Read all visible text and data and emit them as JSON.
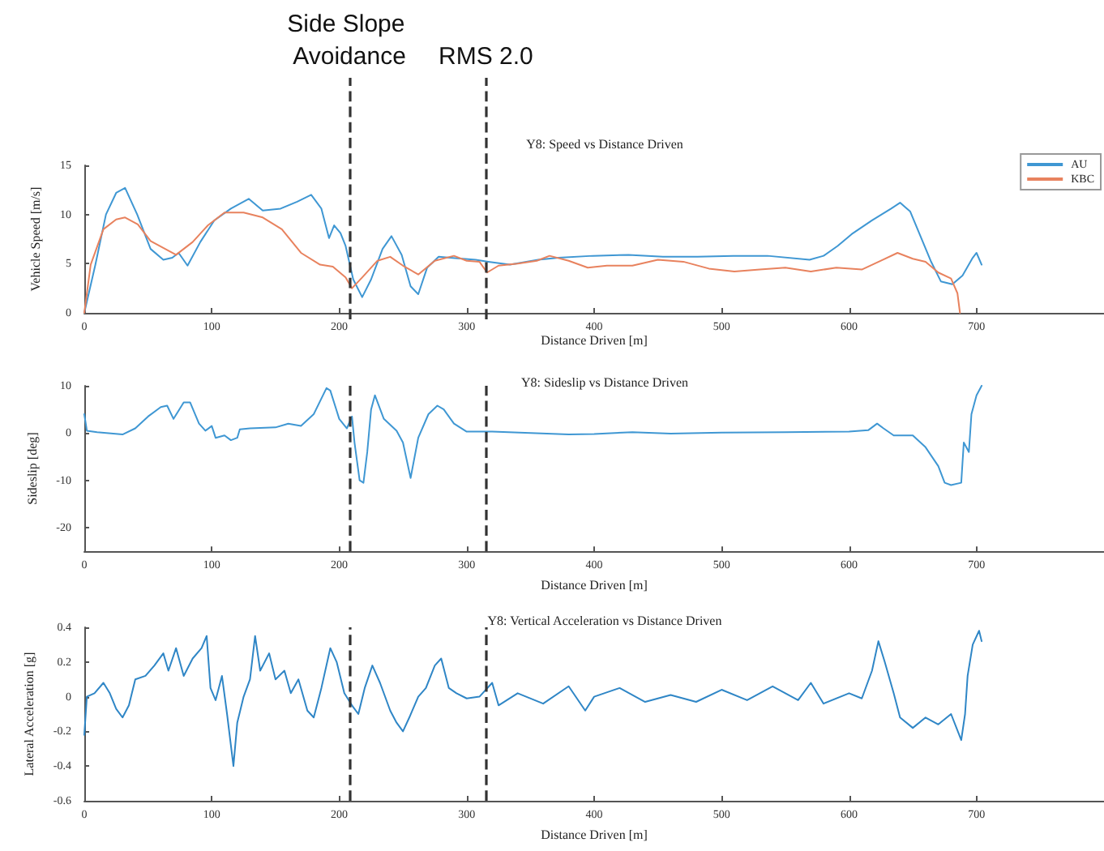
{
  "chart_data": [
    {
      "type": "line",
      "title": "Y8: Speed vs Distance Driven",
      "xlabel": "Distance Driven [m]",
      "ylabel": "Vehicle Speed [m/s]",
      "xlim": [
        0,
        800
      ],
      "xticks": [
        0,
        100,
        200,
        300,
        400,
        500,
        600,
        700
      ],
      "ylim": [
        0,
        15
      ],
      "yticks": [
        0,
        5,
        10,
        15
      ],
      "legend": "top right",
      "grid": false,
      "marker": "none",
      "line_style": "solid",
      "ref_lines": [
        {
          "axis": "x",
          "value": 208,
          "label": "Side Slope Avoidance",
          "color": "#333333",
          "line_style": "dashed"
        },
        {
          "axis": "x",
          "value": 315,
          "label": "RMS 2.0",
          "color": "#333333",
          "line_style": "dashed"
        }
      ],
      "series": [
        {
          "name": "AU",
          "color": "#3f97d3",
          "x": [
            0,
            8.7,
            17,
            25,
            32,
            41.5,
            52,
            62,
            69,
            74,
            81,
            91,
            102,
            115,
            129,
            140,
            154,
            167,
            178,
            186,
            192,
            196,
            201,
            205,
            211,
            218,
            225,
            234,
            241,
            249,
            256,
            262,
            269,
            278,
            287,
            307,
            317,
            334,
            356,
            372,
            399,
            427,
            454,
            481,
            509,
            536,
            569,
            580,
            591,
            602,
            618,
            633,
            640,
            648,
            656,
            664,
            672,
            681,
            689,
            697,
            700,
            704
          ],
          "values": [
            0,
            4.9,
            10,
            12.2,
            12.7,
            10,
            6.5,
            5.4,
            5.6,
            6.1,
            4.8,
            7.2,
            9.4,
            10.6,
            11.6,
            10.4,
            10.6,
            11.3,
            12,
            10.6,
            7.6,
            8.9,
            8.1,
            6.8,
            3.4,
            1.6,
            3.4,
            6.5,
            7.8,
            5.9,
            2.7,
            1.9,
            4.6,
            5.7,
            5.6,
            5.4,
            5.2,
            4.9,
            5.4,
            5.6,
            5.8,
            5.9,
            5.7,
            5.7,
            5.8,
            5.8,
            5.4,
            5.8,
            6.8,
            8,
            9.4,
            10.6,
            11.2,
            10.3,
            7.8,
            5.3,
            3.2,
            2.9,
            3.8,
            5.6,
            6.1,
            4.9
          ]
        },
        {
          "name": "KBC",
          "color": "#e8825e",
          "x": [
            0,
            5,
            15,
            25,
            32,
            42,
            52,
            62,
            72,
            85,
            97,
            110,
            125,
            140,
            155,
            170,
            185,
            195,
            205,
            210,
            218,
            230,
            240,
            250,
            262,
            275,
            290,
            300,
            310,
            316,
            325,
            340,
            355,
            365,
            380,
            395,
            410,
            430,
            450,
            470,
            490,
            510,
            530,
            550,
            570,
            590,
            610,
            625,
            638,
            650,
            660,
            670,
            680,
            685,
            687
          ],
          "values": [
            0,
            4.9,
            8.5,
            9.5,
            9.7,
            9,
            7.3,
            6.6,
            5.9,
            7.2,
            8.9,
            10.2,
            10.2,
            9.7,
            8.5,
            6.1,
            4.9,
            4.7,
            3.6,
            2.5,
            3.6,
            5.3,
            5.7,
            4.8,
            3.9,
            5.3,
            5.8,
            5.3,
            5.2,
            4.1,
            4.8,
            5,
            5.3,
            5.8,
            5.3,
            4.6,
            4.8,
            4.8,
            5.4,
            5.2,
            4.5,
            4.2,
            4.4,
            4.6,
            4.2,
            4.6,
            4.4,
            5.3,
            6.1,
            5.5,
            5.2,
            4.1,
            3.5,
            2,
            0
          ]
        }
      ]
    },
    {
      "type": "line",
      "title": "Y8: Sideslip vs Distance Driven",
      "xlabel": "Distance Driven [m]",
      "ylabel": "Sideslip [deg]",
      "xlim": [
        0,
        800
      ],
      "xticks": [
        0,
        100,
        200,
        300,
        400,
        500,
        600,
        700
      ],
      "ylim": [
        -25,
        10
      ],
      "yticks": [
        -20,
        -10,
        0,
        10
      ],
      "legend": false,
      "grid": false,
      "marker": "none",
      "line_style": "solid",
      "ref_lines": [
        {
          "axis": "x",
          "value": 208,
          "color": "#333333",
          "line_style": "dashed"
        },
        {
          "axis": "x",
          "value": 315,
          "color": "#333333",
          "line_style": "dashed"
        }
      ],
      "series": [
        {
          "color": "#3f97d3",
          "x": [
            0,
            2,
            10,
            30,
            40,
            50,
            60,
            65,
            70,
            78,
            83,
            90,
            95,
            100,
            103,
            110,
            115,
            120,
            122,
            130,
            150,
            160,
            170,
            180,
            190,
            193,
            200,
            206,
            210,
            212,
            216,
            219,
            222,
            225,
            228,
            235,
            245,
            250,
            256,
            262,
            270,
            277,
            282,
            290,
            300,
            320,
            350,
            380,
            400,
            430,
            460,
            500,
            550,
            600,
            615,
            622,
            627,
            635,
            650,
            660,
            670,
            675,
            680,
            688,
            690,
            694,
            696,
            700,
            704
          ],
          "values": [
            4,
            0.5,
            0.2,
            -0.3,
            1,
            3.5,
            5.5,
            5.8,
            3,
            6.5,
            6.5,
            2,
            0.5,
            1.5,
            -1,
            -0.5,
            -1.5,
            -1,
            0.8,
            1,
            1.2,
            2,
            1.5,
            4,
            9.5,
            9,
            3,
            1,
            3.5,
            -2,
            -10,
            -10.5,
            -4,
            5,
            8,
            3,
            0.5,
            -2,
            -9.5,
            -1,
            4,
            5.8,
            5,
            2,
            0.3,
            0.3,
            0,
            -0.3,
            -0.2,
            0.2,
            -0.1,
            0.1,
            0.2,
            0.3,
            0.6,
            2,
            1,
            -0.5,
            -0.5,
            -3,
            -7,
            -10.5,
            -11,
            -10.5,
            -2,
            -4,
            4,
            8,
            10
          ]
        }
      ]
    },
    {
      "type": "line",
      "title": "Y8: Vertical Acceleration vs Distance Driven",
      "xlabel": "Distance Driven [m]",
      "ylabel": "Lateral Acceleration [g]",
      "xlim": [
        0,
        800
      ],
      "xticks": [
        0,
        100,
        200,
        300,
        400,
        500,
        600,
        700
      ],
      "ylim": [
        -0.6,
        0.4
      ],
      "yticks": [
        -0.6,
        -0.4,
        -0.2,
        0,
        0.2,
        0.4
      ],
      "legend": false,
      "grid": false,
      "marker": "none",
      "line_style": "solid",
      "ref_lines": [
        {
          "axis": "x",
          "value": 208,
          "color": "#333333",
          "line_style": "dashed"
        },
        {
          "axis": "x",
          "value": 315,
          "color": "#333333",
          "line_style": "dashed"
        }
      ],
      "series": [
        {
          "color": "#2f86c6",
          "x": [
            0,
            2,
            8,
            15,
            20,
            25,
            30,
            35,
            40,
            48,
            55,
            62,
            66,
            72,
            78,
            85,
            92,
            96,
            99,
            103,
            108,
            112,
            117,
            120,
            125,
            130,
            134,
            138,
            145,
            150,
            157,
            162,
            168,
            175,
            180,
            186,
            193,
            198,
            204,
            210,
            215,
            220,
            226,
            232,
            240,
            245,
            250,
            255,
            262,
            268,
            275,
            280,
            286,
            292,
            300,
            310,
            320,
            325,
            340,
            360,
            380,
            393,
            400,
            420,
            440,
            460,
            480,
            500,
            520,
            540,
            560,
            570,
            580,
            600,
            610,
            618,
            623,
            628,
            635,
            640,
            650,
            660,
            670,
            680,
            688,
            691,
            693,
            697,
            702,
            704
          ],
          "values": [
            -0.22,
            0,
            0.02,
            0.08,
            0.02,
            -0.07,
            -0.12,
            -0.05,
            0.1,
            0.12,
            0.18,
            0.25,
            0.15,
            0.28,
            0.12,
            0.22,
            0.28,
            0.35,
            0.05,
            -0.02,
            0.12,
            -0.1,
            -0.4,
            -0.15,
            0,
            0.1,
            0.35,
            0.15,
            0.25,
            0.1,
            0.15,
            0.02,
            0.1,
            -0.08,
            -0.12,
            0.05,
            0.28,
            0.2,
            0.02,
            -0.05,
            -0.1,
            0.05,
            0.18,
            0.08,
            -0.08,
            -0.15,
            -0.2,
            -0.12,
            0,
            0.05,
            0.18,
            0.22,
            0.05,
            0.02,
            -0.01,
            0,
            0.08,
            -0.05,
            0.02,
            -0.04,
            0.06,
            -0.08,
            0,
            0.05,
            -0.03,
            0.01,
            -0.03,
            0.04,
            -0.02,
            0.06,
            -0.02,
            0.08,
            -0.04,
            0.02,
            -0.01,
            0.15,
            0.32,
            0.2,
            0.02,
            -0.12,
            -0.18,
            -0.12,
            -0.16,
            -0.1,
            -0.25,
            -0.1,
            0.12,
            0.3,
            0.38,
            0.32
          ]
        }
      ]
    }
  ]
}
